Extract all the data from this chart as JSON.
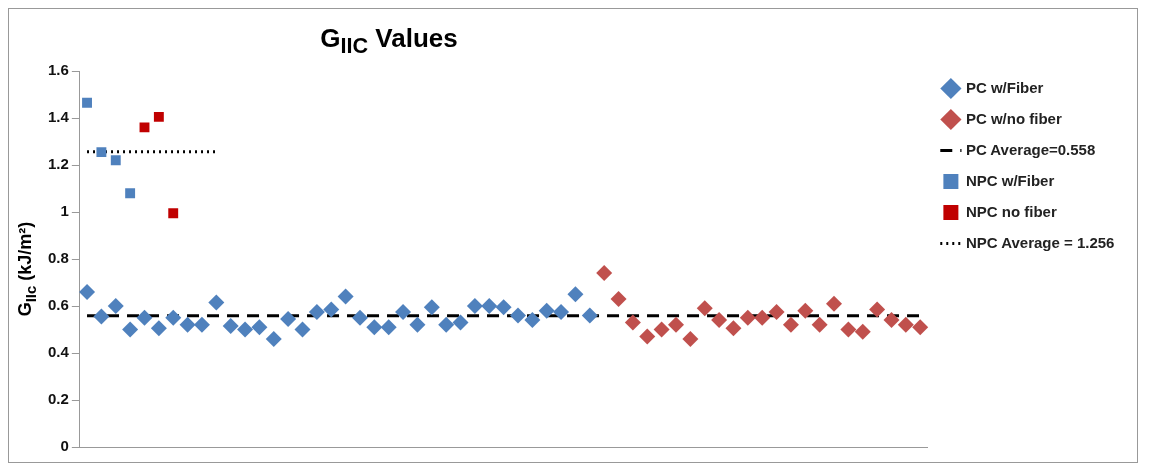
{
  "chart_data": {
    "type": "scatter",
    "title": "G$_{IIC}$ Values",
    "ylabel": "G$_{IIc}$ (kJ/m²)",
    "categories": [
      null,
      null,
      null,
      null,
      null,
      null,
      null,
      null,
      null,
      null,
      null,
      null,
      null,
      null,
      null,
      null,
      null,
      null,
      null,
      null,
      null,
      null,
      null,
      null,
      null,
      null,
      null,
      null,
      null,
      null,
      null,
      null,
      null,
      null,
      null,
      null,
      null,
      null,
      null,
      null,
      null,
      null,
      null,
      null,
      null,
      null,
      null,
      null,
      null,
      null,
      null,
      null,
      null,
      null,
      null,
      null,
      null,
      null,
      null
    ],
    "ylim": [
      0,
      1.6
    ],
    "yticks": [
      0,
      0.2,
      0.4,
      0.6,
      0.8,
      1,
      1.2,
      1.4,
      1.6
    ],
    "tick_labels": "y",
    "grid": false,
    "legend": "top right",
    "series": [
      {
        "name": "PC w/Fiber",
        "marker": "diamond",
        "color": "#4f81bd",
        "values": [
          0.66,
          0.555,
          0.6,
          0.5,
          0.55,
          0.505,
          0.55,
          0.52,
          0.52,
          0.615,
          0.515,
          0.5,
          0.51,
          0.46,
          0.545,
          0.5,
          0.575,
          0.585,
          0.64,
          0.55,
          0.51,
          0.51,
          0.575,
          0.52,
          0.595,
          0.52,
          0.53,
          0.6,
          0.6,
          0.595,
          0.56,
          0.54,
          0.58,
          0.575,
          0.65,
          0.56,
          null,
          null,
          null,
          null,
          null,
          null,
          null,
          null,
          null,
          null,
          null,
          null,
          null,
          null,
          null,
          null,
          null,
          null,
          null,
          null,
          null,
          null,
          null
        ]
      },
      {
        "name": "PC w/no fiber",
        "marker": "diamond",
        "color": "#c0504d",
        "values": [
          null,
          null,
          null,
          null,
          null,
          null,
          null,
          null,
          null,
          null,
          null,
          null,
          null,
          null,
          null,
          null,
          null,
          null,
          null,
          null,
          null,
          null,
          null,
          null,
          null,
          null,
          null,
          null,
          null,
          null,
          null,
          null,
          null,
          null,
          null,
          null,
          0.74,
          0.63,
          0.53,
          0.47,
          0.5,
          0.52,
          0.46,
          0.59,
          0.54,
          0.505,
          0.55,
          0.55,
          0.575,
          0.52,
          0.58,
          0.52,
          0.61,
          0.5,
          0.49,
          0.585,
          0.54,
          0.52,
          0.51
        ]
      },
      {
        "name": "PC Average=0.558",
        "type": "line",
        "marker": "none",
        "line_style": "dashed",
        "color": "#000000",
        "values": [
          0.558,
          0.558,
          0.558,
          0.558,
          0.558,
          0.558,
          0.558,
          0.558,
          0.558,
          0.558,
          0.558,
          0.558,
          0.558,
          0.558,
          0.558,
          0.558,
          0.558,
          0.558,
          0.558,
          0.558,
          0.558,
          0.558,
          0.558,
          0.558,
          0.558,
          0.558,
          0.558,
          0.558,
          0.558,
          0.558,
          0.558,
          0.558,
          0.558,
          0.558,
          0.558,
          0.558,
          0.558,
          0.558,
          0.558,
          0.558,
          0.558,
          0.558,
          0.558,
          0.558,
          0.558,
          0.558,
          0.558,
          0.558,
          0.558,
          0.558,
          0.558,
          0.558,
          0.558,
          0.558,
          0.558,
          0.558,
          0.558,
          0.558,
          0.558
        ]
      },
      {
        "name": "NPC w/Fiber",
        "marker": "square",
        "color": "#4f81bd",
        "values": [
          1.465,
          1.255,
          1.22,
          1.08,
          null,
          null,
          null,
          null,
          null,
          null,
          null,
          null,
          null,
          null,
          null,
          null,
          null,
          null,
          null,
          null,
          null,
          null,
          null,
          null,
          null,
          null,
          null,
          null,
          null,
          null,
          null,
          null,
          null,
          null,
          null,
          null,
          null,
          null,
          null,
          null,
          null,
          null,
          null,
          null,
          null,
          null,
          null,
          null,
          null,
          null,
          null,
          null,
          null,
          null,
          null,
          null,
          null,
          null,
          null
        ]
      },
      {
        "name": "NPC no fiber",
        "marker": "square",
        "color": "#c00000",
        "values": [
          null,
          null,
          null,
          null,
          1.36,
          1.405,
          0.995,
          null,
          null,
          null,
          null,
          null,
          null,
          null,
          null,
          null,
          null,
          null,
          null,
          null,
          null,
          null,
          null,
          null,
          null,
          null,
          null,
          null,
          null,
          null,
          null,
          null,
          null,
          null,
          null,
          null,
          null,
          null,
          null,
          null,
          null,
          null,
          null,
          null,
          null,
          null,
          null,
          null,
          null,
          null,
          null,
          null,
          null,
          null,
          null,
          null,
          null,
          null,
          null
        ]
      },
      {
        "name": "NPC Average = 1.256",
        "type": "line",
        "marker": "none",
        "line_style": "dotted",
        "color": "#000000",
        "values": [
          1.256,
          1.256,
          1.256,
          1.256,
          1.256,
          1.256,
          1.256,
          1.256,
          1.256,
          1.256,
          null,
          null,
          null,
          null,
          null,
          null,
          null,
          null,
          null,
          null,
          null,
          null,
          null,
          null,
          null,
          null,
          null,
          null,
          null,
          null,
          null,
          null,
          null,
          null,
          null,
          null,
          null,
          null,
          null,
          null,
          null,
          null,
          null,
          null,
          null,
          null,
          null,
          null,
          null,
          null,
          null,
          null,
          null,
          null,
          null,
          null,
          null,
          null,
          null
        ]
      }
    ]
  }
}
